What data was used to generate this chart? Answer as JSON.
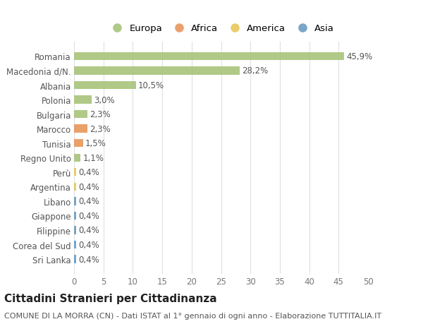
{
  "categories": [
    "Romania",
    "Macedonia d/N.",
    "Albania",
    "Polonia",
    "Bulgaria",
    "Marocco",
    "Tunisia",
    "Regno Unito",
    "Perù",
    "Argentina",
    "Libano",
    "Giappone",
    "Filippine",
    "Corea del Sud",
    "Sri Lanka"
  ],
  "values": [
    45.9,
    28.2,
    10.5,
    3.0,
    2.3,
    2.3,
    1.5,
    1.1,
    0.4,
    0.4,
    0.4,
    0.4,
    0.4,
    0.4,
    0.4
  ],
  "labels": [
    "45,9%",
    "28,2%",
    "10,5%",
    "3,0%",
    "2,3%",
    "2,3%",
    "1,5%",
    "1,1%",
    "0,4%",
    "0,4%",
    "0,4%",
    "0,4%",
    "0,4%",
    "0,4%",
    "0,4%"
  ],
  "colors": [
    "#a8c47a",
    "#a8c47a",
    "#a8c47a",
    "#a8c47a",
    "#a8c47a",
    "#e8965a",
    "#e8965a",
    "#a8c47a",
    "#e8c85a",
    "#e8c85a",
    "#6b9dc3",
    "#6b9dc3",
    "#6b9dc3",
    "#6b9dc3",
    "#6b9dc3"
  ],
  "legend_labels": [
    "Europa",
    "Africa",
    "America",
    "Asia"
  ],
  "legend_colors": [
    "#a8c47a",
    "#e8965a",
    "#e8c85a",
    "#6b9dc3"
  ],
  "title": "Cittadini Stranieri per Cittadinanza",
  "subtitle": "COMUNE DI LA MORRA (CN) - Dati ISTAT al 1° gennaio di ogni anno - Elaborazione TUTTITALIA.IT",
  "xlim": [
    0,
    50
  ],
  "xticks": [
    0,
    5,
    10,
    15,
    20,
    25,
    30,
    35,
    40,
    45,
    50
  ],
  "background_color": "#ffffff",
  "grid_color": "#e0e0e0",
  "bar_height": 0.55,
  "title_fontsize": 11,
  "subtitle_fontsize": 8,
  "tick_fontsize": 8.5,
  "label_fontsize": 8.5,
  "legend_fontsize": 9.5
}
